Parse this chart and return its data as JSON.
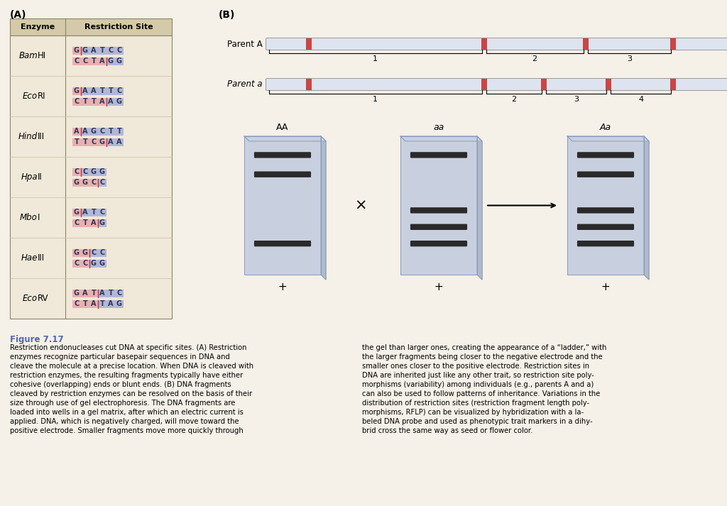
{
  "bg_color": "#f5f0e8",
  "title_A": "(A)",
  "title_B": "(B)",
  "table_header_bg": "#d4c9a8",
  "table_bg": "#f0e8d8",
  "cell_blue": "#b0b8d8",
  "cell_pink": "#e8b0b0",
  "enzymes": [
    "BamHI",
    "EcoRI",
    "HindIII",
    "HpaII",
    "MboI",
    "HaeIII",
    "EcoRV"
  ],
  "top_seqs": [
    "GGATCC",
    "GAATTC",
    "AAGCTT",
    "CCGG",
    "GATC",
    "GGCC",
    "GATATC"
  ],
  "bot_seqs": [
    "CCTAGG",
    "CTTAAG",
    "TTCGAA",
    "GGCC",
    "CTAG",
    "CCGG",
    "CTATAG"
  ],
  "cut_after_top": [
    1,
    1,
    1,
    1,
    1,
    2,
    3
  ],
  "cut_after_bot": [
    4,
    4,
    4,
    3,
    3,
    2,
    3
  ],
  "dna_bar_color": "#dde4ef",
  "dna_bar_border": "#aaaaaa",
  "restriction_site_color": "#cc4444",
  "gel_bg": "#c8d0e0",
  "gel_border": "#8899bb",
  "gel_band_color": "#2a2a2a",
  "figure_label_color": "#5566aa",
  "caption_title": "Figure 7.17",
  "caption_text_col1": "Restriction endonucleases cut DNA at specific sites. (A) Restriction\nenzymes recognize particular basepair sequences in DNA and\ncleave the molecule at a precise location. When DNA is cleaved with\nrestriction enzymes, the resulting fragments typically have either\ncohesive (overlapping) ends or blunt ends. (B) DNA fragments\ncleaved by restriction enzymes can be resolved on the basis of their\nsize through use of gel electrophoresis. The DNA fragments are\nloaded into wells in a gel matrix, after which an electric current is\napplied. DNA, which is negatively charged, will move toward the\npositive electrode. Smaller fragments move more quickly through",
  "caption_text_col2": "the gel than larger ones, creating the appearance of a “ladder,” with\nthe larger fragments being closer to the negative electrode and the\nsmaller ones closer to the positive electrode. Restriction sites in\nDNA are inherited just like any other trait, so restriction site poly-\nmorphisms (variability) among individuals (e.g., parents A and a)\ncan also be used to follow patterns of inheritance. Variations in the\ndistribution of restriction sites (restriction fragment length poly-\nmorphisms, RFLP) can be visualized by hybridization with a la-\nbeled DNA probe and used as phenotypic trait markers in a dihy-\nbrid cross the same way as seed or flower color."
}
